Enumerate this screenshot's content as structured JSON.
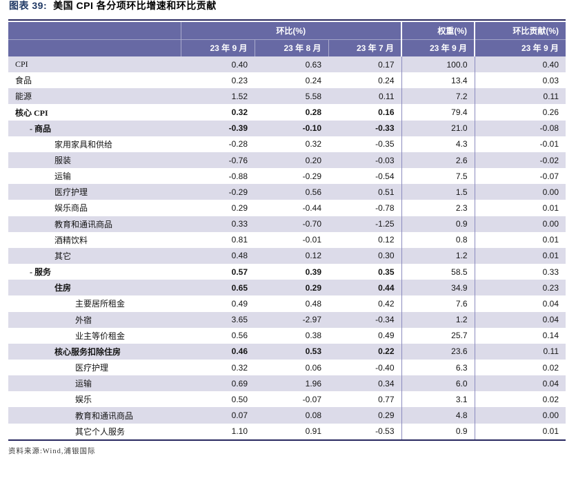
{
  "title": {
    "prefix": "图表 39:",
    "text": "美国 CPI 各分项环比增速和环比贡献"
  },
  "colors": {
    "header_bg": "#6769a4",
    "row_alt": "#dcdbe9",
    "rule_dark": "#26265e",
    "column_separator": "#8a8abe",
    "title_prefix": "#1f3864"
  },
  "table": {
    "header": {
      "group_mom": "环比(%)",
      "group_weight": "权重(%)",
      "group_contrib": "环比贡献(%)",
      "months": [
        "23 年 9 月",
        "23 年 8 月",
        "23 年 7 月"
      ],
      "weight_month": "23 年 9 月",
      "contrib_month": "23 年 9 月"
    },
    "rows": [
      {
        "label": "CPI",
        "indent": 0,
        "bold": false,
        "mom": [
          "0.40",
          "0.63",
          "0.17"
        ],
        "weight": "100.0",
        "contrib": "0.40"
      },
      {
        "label": "食品",
        "indent": 0,
        "bold": false,
        "mom": [
          "0.23",
          "0.24",
          "0.24"
        ],
        "weight": "13.4",
        "contrib": "0.03"
      },
      {
        "label": "能源",
        "indent": 0,
        "bold": false,
        "mom": [
          "1.52",
          "5.58",
          "0.11"
        ],
        "weight": "7.2",
        "contrib": "0.11"
      },
      {
        "label": "核心 CPI",
        "indent": 0,
        "bold": true,
        "mom": [
          "0.32",
          "0.28",
          "0.16"
        ],
        "weight": "79.4",
        "contrib": "0.26"
      },
      {
        "label": "- 商品",
        "indent": 1,
        "bold": true,
        "mom": [
          "-0.39",
          "-0.10",
          "-0.33"
        ],
        "weight": "21.0",
        "contrib": "-0.08"
      },
      {
        "label": "家用家具和供给",
        "indent": 2,
        "bold": false,
        "mom": [
          "-0.28",
          "0.32",
          "-0.35"
        ],
        "weight": "4.3",
        "contrib": "-0.01"
      },
      {
        "label": "服装",
        "indent": 2,
        "bold": false,
        "mom": [
          "-0.76",
          "0.20",
          "-0.03"
        ],
        "weight": "2.6",
        "contrib": "-0.02"
      },
      {
        "label": "运输",
        "indent": 2,
        "bold": false,
        "mom": [
          "-0.88",
          "-0.29",
          "-0.54"
        ],
        "weight": "7.5",
        "contrib": "-0.07"
      },
      {
        "label": "医疗护理",
        "indent": 2,
        "bold": false,
        "mom": [
          "-0.29",
          "0.56",
          "0.51"
        ],
        "weight": "1.5",
        "contrib": "0.00"
      },
      {
        "label": "娱乐商品",
        "indent": 2,
        "bold": false,
        "mom": [
          "0.29",
          "-0.44",
          "-0.78"
        ],
        "weight": "2.3",
        "contrib": "0.01"
      },
      {
        "label": "教育和通讯商品",
        "indent": 2,
        "bold": false,
        "mom": [
          "0.33",
          "-0.70",
          "-1.25"
        ],
        "weight": "0.9",
        "contrib": "0.00"
      },
      {
        "label": "酒精饮料",
        "indent": 2,
        "bold": false,
        "mom": [
          "0.81",
          "-0.01",
          "0.12"
        ],
        "weight": "0.8",
        "contrib": "0.01"
      },
      {
        "label": "其它",
        "indent": 2,
        "bold": false,
        "mom": [
          "0.48",
          "0.12",
          "0.30"
        ],
        "weight": "1.2",
        "contrib": "0.01"
      },
      {
        "label": "- 服务",
        "indent": 1,
        "bold": true,
        "mom": [
          "0.57",
          "0.39",
          "0.35"
        ],
        "weight": "58.5",
        "contrib": "0.33"
      },
      {
        "label": "住房",
        "indent": 2,
        "bold": true,
        "mom": [
          "0.65",
          "0.29",
          "0.44"
        ],
        "weight": "34.9",
        "contrib": "0.23"
      },
      {
        "label": "主要居所租金",
        "indent": 3,
        "bold": false,
        "mom": [
          "0.49",
          "0.48",
          "0.42"
        ],
        "weight": "7.6",
        "contrib": "0.04"
      },
      {
        "label": "外宿",
        "indent": 3,
        "bold": false,
        "mom": [
          "3.65",
          "-2.97",
          "-0.34"
        ],
        "weight": "1.2",
        "contrib": "0.04"
      },
      {
        "label": "业主等价租金",
        "indent": 3,
        "bold": false,
        "mom": [
          "0.56",
          "0.38",
          "0.49"
        ],
        "weight": "25.7",
        "contrib": "0.14"
      },
      {
        "label": "核心服务扣除住房",
        "indent": 2,
        "bold": true,
        "mom": [
          "0.46",
          "0.53",
          "0.22"
        ],
        "weight": "23.6",
        "contrib": "0.11"
      },
      {
        "label": "医疗护理",
        "indent": 3,
        "bold": false,
        "mom": [
          "0.32",
          "0.06",
          "-0.40"
        ],
        "weight": "6.3",
        "contrib": "0.02"
      },
      {
        "label": "运输",
        "indent": 3,
        "bold": false,
        "mom": [
          "0.69",
          "1.96",
          "0.34"
        ],
        "weight": "6.0",
        "contrib": "0.04"
      },
      {
        "label": "娱乐",
        "indent": 3,
        "bold": false,
        "mom": [
          "0.50",
          "-0.07",
          "0.77"
        ],
        "weight": "3.1",
        "contrib": "0.02"
      },
      {
        "label": "教育和通讯商品",
        "indent": 3,
        "bold": false,
        "mom": [
          "0.07",
          "0.08",
          "0.29"
        ],
        "weight": "4.8",
        "contrib": "0.00"
      },
      {
        "label": "其它个人服务",
        "indent": 3,
        "bold": false,
        "mom": [
          "1.10",
          "0.91",
          "-0.53"
        ],
        "weight": "0.9",
        "contrib": "0.01"
      }
    ]
  },
  "footer": {
    "source": "资料来源:Wind,浦银国际"
  }
}
